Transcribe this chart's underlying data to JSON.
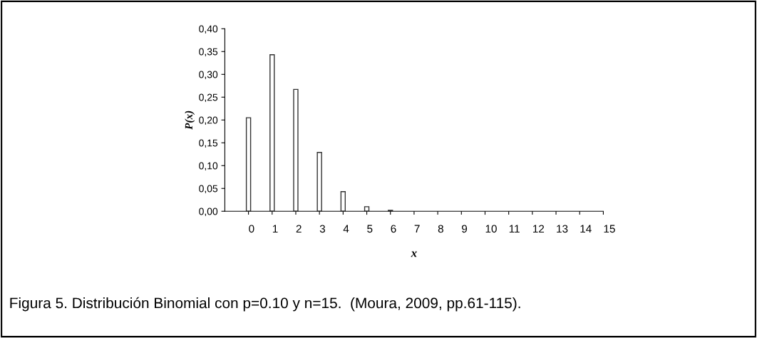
{
  "chart_data": {
    "type": "bar",
    "xlabel": "x",
    "ylabel": "P(x)",
    "categories": [
      "0",
      "1",
      "2",
      "3",
      "4",
      "5",
      "6",
      "7",
      "8",
      "9",
      "10",
      "11",
      "12",
      "13",
      "14",
      "15"
    ],
    "values": [
      0.205,
      0.343,
      0.267,
      0.129,
      0.043,
      0.01,
      0.002,
      0,
      0,
      0,
      0,
      0,
      0,
      0,
      0,
      0
    ],
    "color": "#ffffff",
    "ylim": [
      0,
      0.4
    ],
    "yticks": [
      {
        "value": 0,
        "label": "0,00"
      },
      {
        "value": 0.05,
        "label": "0,05"
      },
      {
        "value": 0.1,
        "label": "0,10"
      },
      {
        "value": 0.15,
        "label": "0,15"
      },
      {
        "value": 0.2,
        "label": "0,20"
      },
      {
        "value": 0.25,
        "label": "0,25"
      },
      {
        "value": 0.3,
        "label": "0,30"
      },
      {
        "value": 0.35,
        "label": "0,35"
      },
      {
        "value": 0.4,
        "label": "0,40"
      }
    ],
    "grid": false,
    "legend": false,
    "annotations": [
      "Figura 5. Distribución Binomial con p=0.10 y n=15.  (Moura, 2009, pp.61-115)."
    ]
  }
}
